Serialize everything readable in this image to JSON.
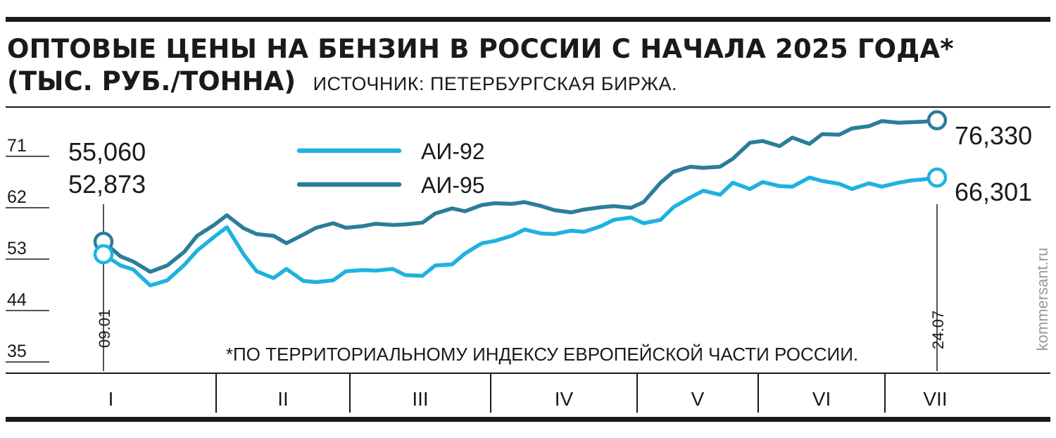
{
  "header": {
    "title": "ОПТОВЫЕ ЦЕНЫ НА БЕНЗИН В РОССИИ С НАЧАЛА 2025 ГОДА*",
    "units": "(ТЫС. РУБ./ТОННА)",
    "source": "ИСТОЧНИК: ПЕТЕРБУРГСКАЯ БИРЖА."
  },
  "credit": "kommersant.ru",
  "colors": {
    "ai92": "#1fb2e0",
    "ai95": "#2b7d99",
    "ink": "#1a1a1a"
  },
  "chart_data": {
    "type": "line",
    "title": "ОПТОВЫЕ ЦЕНЫ НА БЕНЗИН В РОССИИ С НАЧАЛА 2025 ГОДА*",
    "ylabel": "(ТЫС. РУБ./ТОННА)",
    "xlabel": "",
    "ylim": [
      35,
      80
    ],
    "yticks": [
      35,
      44,
      53,
      62,
      71
    ],
    "grid": false,
    "legend_position": "top-center",
    "footnote": "*ПО ТЕРРИТОРИАЛЬНОМУ ИНДЕКСУ ЕВРОПЕЙСКОЙ ЧАСТИ РОССИИ.",
    "months": [
      "I",
      "II",
      "III",
      "IV",
      "V",
      "VI",
      "VII"
    ],
    "start_label": "09.01",
    "end_label": "24.07",
    "start_values": [
      "55,060",
      "52,873"
    ],
    "end_values": {
      "ai95": "76,330",
      "ai92": "66,301"
    },
    "x": [
      "2025-01-09",
      "2025-01-13",
      "2025-01-16",
      "2025-01-20",
      "2025-01-24",
      "2025-01-28",
      "2025-01-31",
      "2025-02-04",
      "2025-02-07",
      "2025-02-11",
      "2025-02-14",
      "2025-02-18",
      "2025-02-21",
      "2025-02-25",
      "2025-02-28",
      "2025-03-04",
      "2025-03-07",
      "2025-03-11",
      "2025-03-14",
      "2025-03-18",
      "2025-03-21",
      "2025-03-25",
      "2025-03-28",
      "2025-04-01",
      "2025-04-04",
      "2025-04-08",
      "2025-04-11",
      "2025-04-15",
      "2025-04-18",
      "2025-04-22",
      "2025-04-25",
      "2025-04-29",
      "2025-05-02",
      "2025-05-06",
      "2025-05-09",
      "2025-05-13",
      "2025-05-16",
      "2025-05-20",
      "2025-05-23",
      "2025-05-27",
      "2025-05-30",
      "2025-06-03",
      "2025-06-06",
      "2025-06-10",
      "2025-06-13",
      "2025-06-17",
      "2025-06-20",
      "2025-06-24",
      "2025-06-27",
      "2025-07-01",
      "2025-07-04",
      "2025-07-08",
      "2025-07-11",
      "2025-07-15",
      "2025-07-18",
      "2025-07-21",
      "2025-07-24"
    ],
    "series": [
      {
        "key": "ai92",
        "name": "АИ-92",
        "values": [
          52.873,
          50.9,
          50.2,
          47.4,
          48.3,
          51.0,
          53.5,
          55.9,
          57.6,
          52.8,
          49.9,
          48.7,
          50.3,
          48.2,
          48.0,
          48.3,
          49.9,
          50.1,
          50.0,
          50.3,
          49.2,
          49.1,
          50.9,
          51.1,
          53.0,
          54.8,
          55.2,
          56.1,
          57.2,
          56.5,
          56.4,
          57.0,
          56.8,
          57.8,
          58.9,
          59.3,
          58.3,
          58.9,
          61.1,
          62.8,
          64.0,
          63.3,
          65.4,
          64.3,
          65.5,
          64.8,
          64.7,
          66.3,
          65.7,
          65.2,
          64.3,
          65.3,
          64.7,
          65.4,
          65.8,
          66.0,
          66.301
        ]
      },
      {
        "key": "ai95",
        "name": "АИ-95",
        "values": [
          55.06,
          52.5,
          51.6,
          49.8,
          50.9,
          53.3,
          56.1,
          58.0,
          59.7,
          57.4,
          56.4,
          56.1,
          54.8,
          56.3,
          57.5,
          58.3,
          57.5,
          57.8,
          58.2,
          58.0,
          58.1,
          58.4,
          60.0,
          60.9,
          60.4,
          61.5,
          61.8,
          61.7,
          62.0,
          61.3,
          60.6,
          60.2,
          60.7,
          61.1,
          61.3,
          61.0,
          62.0,
          65.4,
          67.3,
          68.2,
          68.0,
          68.2,
          69.6,
          72.4,
          72.7,
          71.8,
          73.3,
          72.2,
          73.9,
          73.8,
          74.9,
          75.3,
          76.2,
          75.9,
          76.0,
          76.1,
          76.33
        ]
      }
    ]
  }
}
